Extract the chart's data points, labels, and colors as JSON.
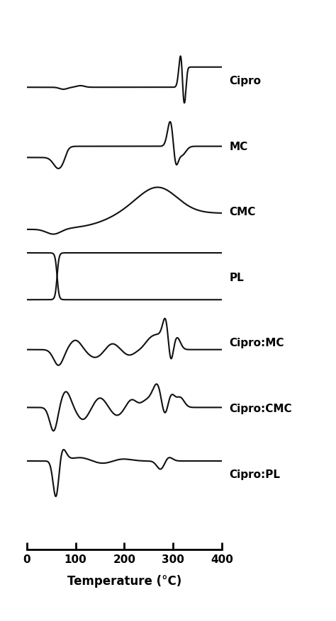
{
  "labels": [
    "Cipro",
    "MC",
    "CMC",
    "PL",
    "Cipro:MC",
    "Cipro:CMC",
    "Cipro:PL"
  ],
  "x_min": 0,
  "x_max": 400,
  "xlabel": "Temperature (°C)",
  "xticks": [
    0,
    100,
    200,
    300,
    400
  ],
  "background_color": "#ffffff",
  "line_color": "#111111",
  "label_fontsize": 11,
  "xlabel_fontsize": 12,
  "figsize": [
    4.74,
    8.77
  ],
  "dpi": 100
}
